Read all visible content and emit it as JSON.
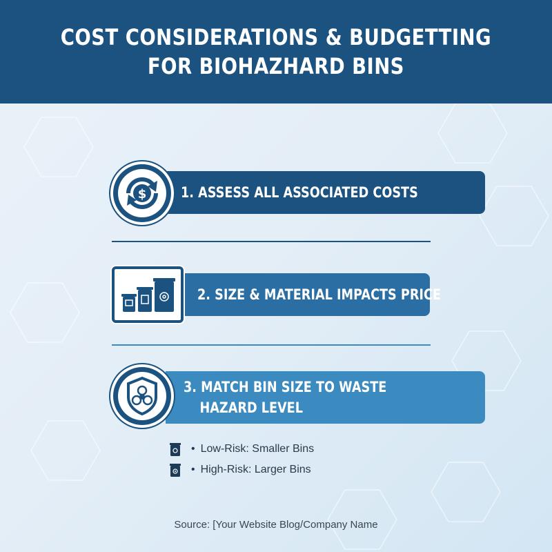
{
  "header": {
    "title_line1": "COST CONSIDERATIONS & BUDGETTING",
    "title_line2": "FOR BIOHAZHARD BINS"
  },
  "steps": [
    {
      "label": "1. ASSESS ALL ASSOCIATED COSTS",
      "icon": "dollar-cycle-icon",
      "color": "#1b527f"
    },
    {
      "label": "2. SIZE & MATERIAL IMPACTS PRICE",
      "icon": "bins-icon",
      "color": "#2b6ea3"
    },
    {
      "label_line1": "3.  MATCH BIN SIZE TO WASTE",
      "label_line2": "HAZARD LEVEL",
      "icon": "biohazard-shield-icon",
      "color": "#3b8bc1"
    }
  ],
  "bullets": [
    {
      "text": "Low-Risk: Smaller Bins",
      "icon": "small-bin-icon"
    },
    {
      "text": "High-Risk: Larger Bins",
      "icon": "large-bin-icon"
    }
  ],
  "source": "Source: [Your Website Blog/Company Name",
  "colors": {
    "navy": "#1b527f",
    "mid_blue": "#2b6ea3",
    "light_blue": "#3b8bc1",
    "background": "#e4eef7"
  }
}
